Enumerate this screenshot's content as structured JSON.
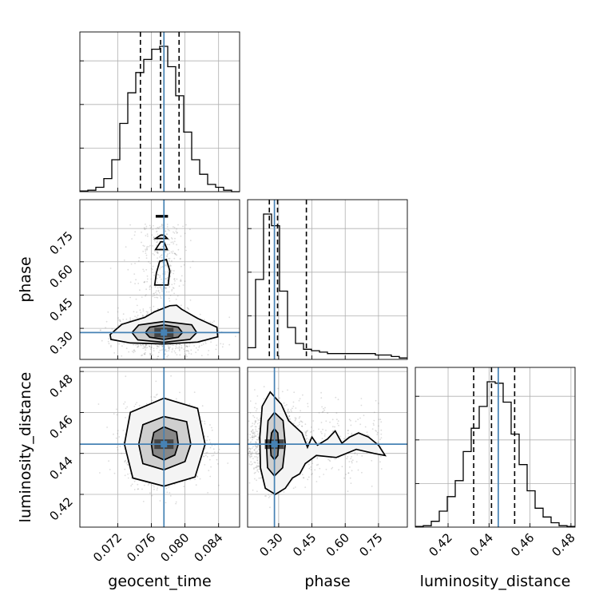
{
  "chart_data": {
    "type": "corner",
    "parameters": [
      {
        "key": "geocent_time",
        "label": "geocent_time",
        "range": [
          0.0675,
          0.0865
        ],
        "ticks": [
          0.072,
          0.076,
          0.08,
          0.084
        ],
        "tick_labels": [
          "0.072",
          "0.076",
          "0.080",
          "0.084"
        ],
        "quantiles": [
          0.0747,
          0.0771,
          0.0793
        ],
        "truth": 0.0775
      },
      {
        "key": "phase",
        "label": "phase",
        "range": [
          0.16,
          0.88
        ],
        "ticks": [
          0.3,
          0.45,
          0.6,
          0.75
        ],
        "tick_labels": [
          "0.30",
          "0.45",
          "0.60",
          "0.75"
        ],
        "quantiles": [
          0.258,
          0.295,
          0.425
        ],
        "truth": 0.281
      },
      {
        "key": "luminosity_distance",
        "label": "luminosity_distance",
        "range": [
          0.404,
          0.482
        ],
        "ticks": [
          0.42,
          0.44,
          0.46,
          0.48
        ],
        "tick_labels": [
          "0.42",
          "0.44",
          "0.46",
          "0.48"
        ],
        "quantiles": [
          0.4325,
          0.4412,
          0.4525
        ],
        "truth": 0.4445
      }
    ],
    "histograms": [
      {
        "param": "geocent_time",
        "edges_start": 0.0675,
        "bin_width": 0.00095,
        "counts": [
          0.5,
          1,
          3,
          9,
          22,
          47,
          68,
          82,
          91,
          98,
          100,
          86,
          66,
          41,
          22,
          12,
          5,
          3,
          1,
          0
        ]
      },
      {
        "param": "phase",
        "edges_start": 0.16,
        "bin_width": 0.036,
        "counts": [
          8,
          55,
          100,
          92,
          47,
          22,
          11,
          7,
          6,
          5,
          4,
          4,
          4,
          4,
          4,
          4,
          3,
          3,
          2,
          1
        ]
      },
      {
        "param": "luminosity_distance",
        "edges_start": 0.404,
        "bin_width": 0.0039,
        "counts": [
          0.5,
          1,
          4,
          11,
          21,
          32,
          52,
          68,
          83,
          100,
          99,
          86,
          64,
          43,
          25,
          13,
          7,
          3,
          1,
          0.5
        ]
      }
    ],
    "pairs": [
      {
        "x": "geocent_time",
        "y": "phase",
        "center": [
          0.0775,
          0.281
        ],
        "spread": [
          0.0026,
          0.045
        ],
        "tail": [
          0.0772,
          0.6,
          0.0015,
          0.17
        ],
        "contours": [
          [
            [
              0.0753,
              0.281
            ],
            [
              0.0758,
              0.305
            ],
            [
              0.0775,
              0.315
            ],
            [
              0.0792,
              0.305
            ],
            [
              0.0797,
              0.281
            ],
            [
              0.0792,
              0.26
            ],
            [
              0.0775,
              0.25
            ],
            [
              0.0758,
              0.26
            ]
          ],
          [
            [
              0.0737,
              0.281
            ],
            [
              0.0745,
              0.315
            ],
            [
              0.0775,
              0.331
            ],
            [
              0.0808,
              0.316
            ],
            [
              0.0814,
              0.281
            ],
            [
              0.0806,
              0.25
            ],
            [
              0.0775,
              0.237
            ],
            [
              0.0744,
              0.248
            ]
          ],
          [
            [
              0.0711,
              0.272
            ],
            [
              0.0725,
              0.318
            ],
            [
              0.0752,
              0.349
            ],
            [
              0.0764,
              0.375
            ],
            [
              0.0782,
              0.402
            ],
            [
              0.079,
              0.404
            ],
            [
              0.0796,
              0.386
            ],
            [
              0.0815,
              0.345
            ],
            [
              0.0838,
              0.305
            ],
            [
              0.0839,
              0.262
            ],
            [
              0.0815,
              0.238
            ],
            [
              0.0775,
              0.23
            ],
            [
              0.0735,
              0.234
            ],
            [
              0.0712,
              0.25
            ]
          ]
        ],
        "islands": [
          [
            [
              0.0764,
              0.495
            ],
            [
              0.078,
              0.495
            ],
            [
              0.0782,
              0.56
            ],
            [
              0.0778,
              0.61
            ],
            [
              0.077,
              0.602
            ],
            [
              0.0766,
              0.55
            ]
          ],
          [
            [
              0.0765,
              0.655
            ],
            [
              0.0779,
              0.655
            ],
            [
              0.0775,
              0.69
            ],
            [
              0.0771,
              0.69
            ]
          ],
          [
            [
              0.0765,
              0.705
            ],
            [
              0.0779,
              0.705
            ],
            [
              0.0775,
              0.72
            ],
            [
              0.0771,
              0.72
            ]
          ],
          [
            [
              0.0766,
              0.802
            ],
            [
              0.0779,
              0.802
            ],
            [
              0.0779,
              0.808
            ],
            [
              0.0766,
              0.808
            ]
          ]
        ]
      },
      {
        "x": "geocent_time",
        "y": "luminosity_distance",
        "center": [
          0.0775,
          0.4445
        ],
        "spread": [
          0.0023,
          0.0093
        ],
        "contours": [
          [
            [
              0.076,
              0.4445
            ],
            [
              0.0763,
              0.4502
            ],
            [
              0.0775,
              0.453
            ],
            [
              0.079,
              0.4505
            ],
            [
              0.0792,
              0.4445
            ],
            [
              0.0788,
              0.4392
            ],
            [
              0.0775,
              0.4368
            ],
            [
              0.0762,
              0.4392
            ]
          ],
          [
            [
              0.0745,
              0.4445
            ],
            [
              0.075,
              0.454
            ],
            [
              0.0775,
              0.458
            ],
            [
              0.0802,
              0.4555
            ],
            [
              0.0807,
              0.4445
            ],
            [
              0.08,
              0.436
            ],
            [
              0.0775,
              0.432
            ],
            [
              0.075,
              0.435
            ]
          ],
          [
            [
              0.0728,
              0.4445
            ],
            [
              0.0735,
              0.46
            ],
            [
              0.0775,
              0.467
            ],
            [
              0.0815,
              0.462
            ],
            [
              0.0824,
              0.4445
            ],
            [
              0.0812,
              0.4285
            ],
            [
              0.0775,
              0.424
            ],
            [
              0.0738,
              0.428
            ]
          ]
        ]
      },
      {
        "x": "phase",
        "y": "luminosity_distance",
        "center": [
          0.281,
          0.4445
        ],
        "spread": [
          0.06,
          0.0093
        ],
        "tail": [
          0.55,
          0.4445,
          0.12,
          0.009
        ],
        "contours": [
          [
            [
              0.262,
              0.4445
            ],
            [
              0.268,
              0.45
            ],
            [
              0.281,
              0.452
            ],
            [
              0.296,
              0.45
            ],
            [
              0.3,
              0.4445
            ],
            [
              0.296,
              0.439
            ],
            [
              0.281,
              0.437
            ],
            [
              0.266,
              0.439
            ]
          ],
          [
            [
              0.245,
              0.4445
            ],
            [
              0.252,
              0.456
            ],
            [
              0.281,
              0.46
            ],
            [
              0.32,
              0.456
            ],
            [
              0.33,
              0.4445
            ],
            [
              0.318,
              0.433
            ],
            [
              0.281,
              0.429
            ],
            [
              0.25,
              0.433
            ]
          ],
          [
            [
              0.215,
              0.448
            ],
            [
              0.226,
              0.463
            ],
            [
              0.262,
              0.47
            ],
            [
              0.312,
              0.464
            ],
            [
              0.345,
              0.456
            ],
            [
              0.405,
              0.45
            ],
            [
              0.43,
              0.443
            ],
            [
              0.45,
              0.448
            ],
            [
              0.475,
              0.444
            ],
            [
              0.52,
              0.447
            ],
            [
              0.555,
              0.451
            ],
            [
              0.585,
              0.445
            ],
            [
              0.62,
              0.448
            ],
            [
              0.66,
              0.45
            ],
            [
              0.705,
              0.448
            ],
            [
              0.75,
              0.444
            ],
            [
              0.78,
              0.439
            ],
            [
              0.73,
              0.44
            ],
            [
              0.65,
              0.442
            ],
            [
              0.56,
              0.438
            ],
            [
              0.47,
              0.439
            ],
            [
              0.42,
              0.435
            ],
            [
              0.395,
              0.43
            ],
            [
              0.362,
              0.428
            ],
            [
              0.33,
              0.423
            ],
            [
              0.285,
              0.42
            ],
            [
              0.24,
              0.423
            ],
            [
              0.218,
              0.433
            ]
          ]
        ]
      }
    ],
    "grid": true,
    "colors": {
      "truth": "#4682b4",
      "line": "#000000",
      "samples": "#808080",
      "grid": "#b0b0b0"
    }
  }
}
